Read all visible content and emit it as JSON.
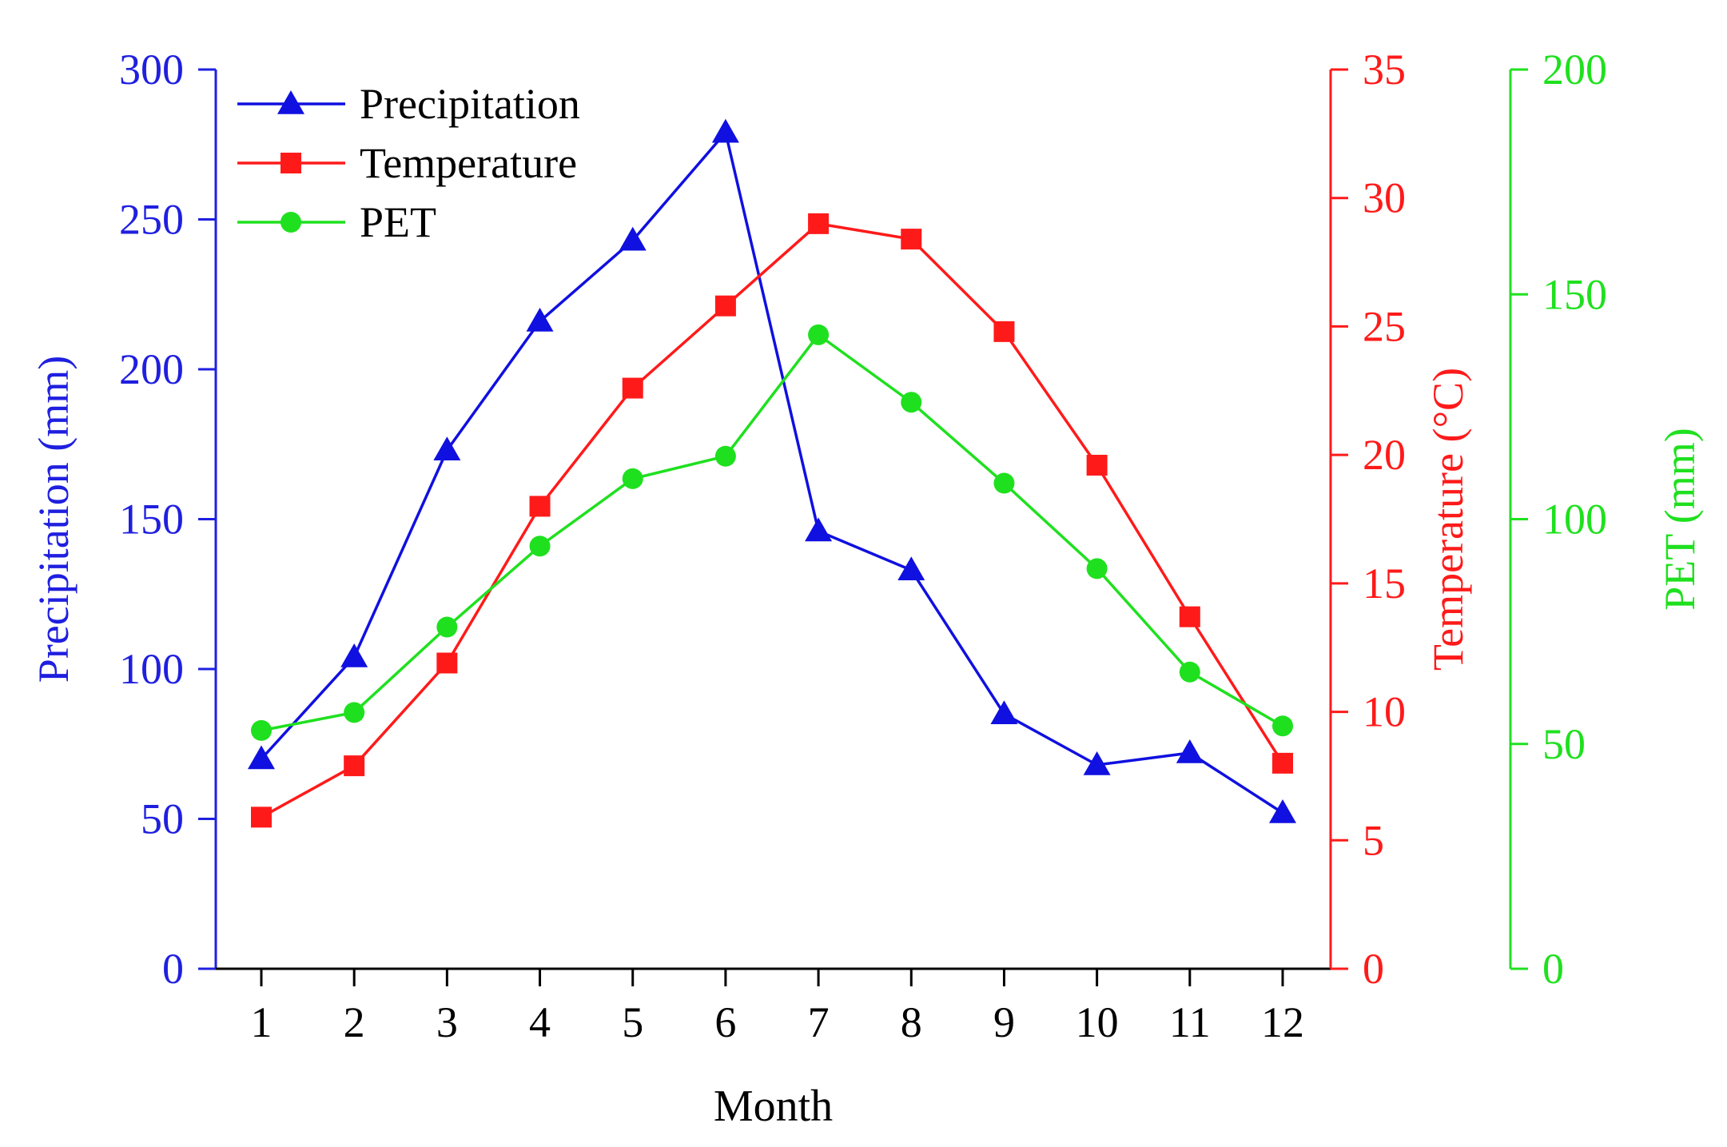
{
  "chart_data": {
    "type": "line",
    "xlabel": "Month",
    "categories": [
      "1",
      "2",
      "3",
      "4",
      "5",
      "6",
      "7",
      "8",
      "9",
      "10",
      "11",
      "12"
    ],
    "axes": {
      "precip": {
        "label": "Precipitation (mm)",
        "ylim": [
          0,
          300
        ],
        "ticks": [
          0,
          50,
          100,
          150,
          200,
          250,
          300
        ],
        "color": "#1f1fe0"
      },
      "temp": {
        "label": "Temperature (°C)",
        "ylim": [
          0,
          35
        ],
        "ticks": [
          0,
          5,
          10,
          15,
          20,
          25,
          30,
          35
        ],
        "color": "#ff1a1a"
      },
      "pet": {
        "label": "PET (mm)",
        "ylim": [
          0,
          200
        ],
        "ticks": [
          0,
          50,
          100,
          150,
          200
        ],
        "color": "#1fe01f"
      }
    },
    "series": [
      {
        "name": "Precipitation",
        "axis": "precip",
        "marker": "triangle",
        "color": "#1010e0",
        "values": [
          70,
          104,
          173,
          216,
          243,
          279,
          146,
          133,
          85,
          68,
          72,
          52
        ]
      },
      {
        "name": "Temperature",
        "axis": "temp",
        "marker": "square",
        "color": "#ff1a1a",
        "values": [
          5.9,
          7.9,
          11.9,
          18.0,
          22.6,
          25.8,
          29.0,
          28.4,
          24.8,
          19.6,
          13.7,
          8.0
        ]
      },
      {
        "name": "PET",
        "axis": "pet",
        "marker": "circle",
        "color": "#1fe01f",
        "values": [
          53,
          57,
          76,
          94,
          109,
          114,
          141,
          126,
          108,
          89,
          66,
          54
        ]
      }
    ],
    "legend": {
      "position": "top-left",
      "items": [
        "Precipitation",
        "Temperature",
        "PET"
      ]
    }
  }
}
